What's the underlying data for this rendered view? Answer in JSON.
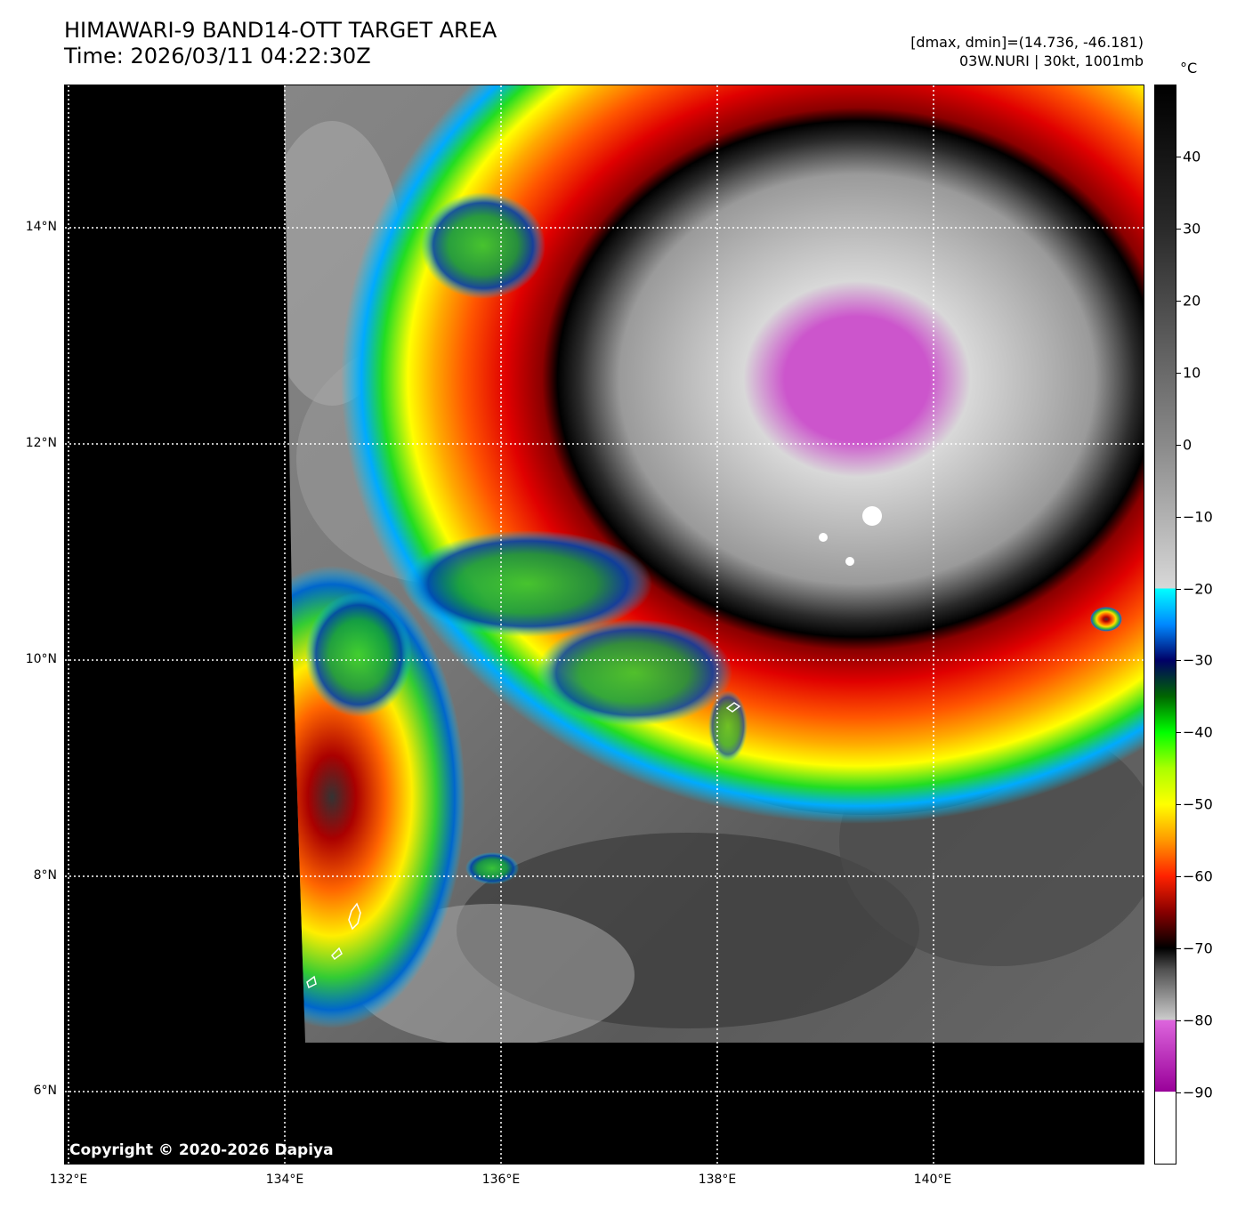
{
  "header": {
    "title": "HIMAWARI-9 BAND14-OTT TARGET AREA",
    "time": "Time: 2026/03/11 04:22:30Z",
    "range": "[dmax, dmin]=(14.736, -46.181)",
    "storm": "03W.NURI | 30kt, 1001mb"
  },
  "map": {
    "lon_range": [
      132,
      142
    ],
    "lat_range": [
      5.3,
      15.3
    ],
    "lat_labels": [
      {
        "value": 14,
        "label": "14°N"
      },
      {
        "value": 12,
        "label": "12°N"
      },
      {
        "value": 10,
        "label": "10°N"
      },
      {
        "value": 8,
        "label": "8°N"
      },
      {
        "value": 6,
        "label": "6°N"
      }
    ],
    "lon_labels": [
      {
        "value": 132,
        "label": "132°E"
      },
      {
        "value": 134,
        "label": "134°E"
      },
      {
        "value": 136,
        "label": "136°E"
      },
      {
        "value": 138,
        "label": "138°E"
      },
      {
        "value": 140,
        "label": "140°E"
      }
    ],
    "grid": "dotted",
    "no_data_color": "#000000"
  },
  "colorbar": {
    "unit": "°C",
    "range": [
      -100,
      50
    ],
    "ticks": [
      40,
      30,
      20,
      10,
      0,
      -10,
      -20,
      -30,
      -40,
      -50,
      -60,
      -70,
      -80,
      -90
    ]
  },
  "footer": {
    "copyright": "Copyright © 2020-2026 Dapiya"
  }
}
